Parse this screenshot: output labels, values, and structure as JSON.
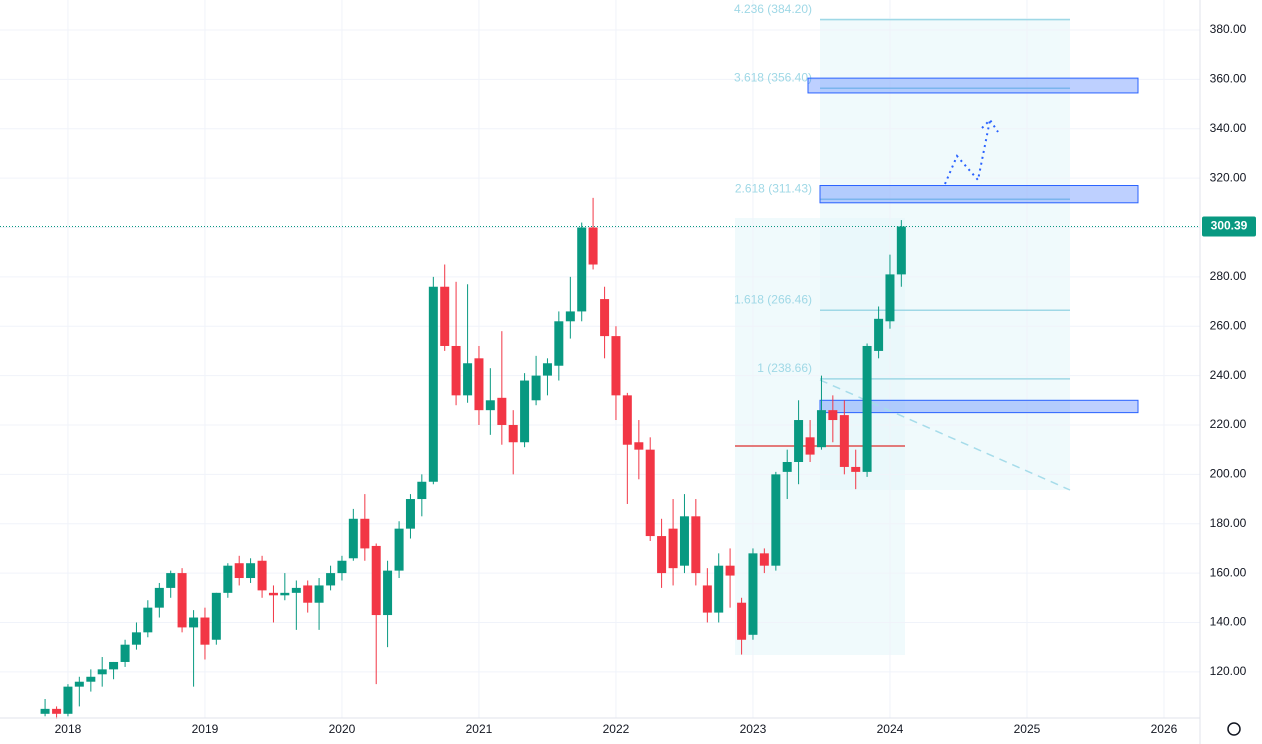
{
  "chart_data": {
    "type": "candlestick",
    "x": [
      2017.833,
      2017.917,
      2018.0,
      2018.083,
      2018.167,
      2018.25,
      2018.333,
      2018.417,
      2018.5,
      2018.583,
      2018.667,
      2018.75,
      2018.833,
      2018.917,
      2019.0,
      2019.083,
      2019.167,
      2019.25,
      2019.333,
      2019.417,
      2019.5,
      2019.583,
      2019.667,
      2019.75,
      2019.833,
      2019.917,
      2020.0,
      2020.083,
      2020.167,
      2020.25,
      2020.333,
      2020.417,
      2020.5,
      2020.583,
      2020.667,
      2020.75,
      2020.833,
      2020.917,
      2021.0,
      2021.083,
      2021.167,
      2021.25,
      2021.333,
      2021.417,
      2021.5,
      2021.583,
      2021.667,
      2021.75,
      2021.833,
      2021.917,
      2022.0,
      2022.083,
      2022.167,
      2022.25,
      2022.333,
      2022.417,
      2022.5,
      2022.583,
      2022.667,
      2022.75,
      2022.833,
      2022.917,
      2023.0,
      2023.083,
      2023.167,
      2023.25,
      2023.333,
      2023.417,
      2023.5,
      2023.583,
      2023.667,
      2023.75,
      2023.833,
      2023.917,
      2024.0,
      2024.083
    ],
    "open": [
      103,
      105,
      103,
      114,
      116,
      119,
      121,
      124,
      131,
      136,
      146,
      154,
      160,
      138,
      142,
      133,
      152,
      164,
      158,
      165,
      152,
      151,
      152,
      155,
      148,
      155,
      160,
      166,
      182,
      171,
      143,
      161,
      178,
      190,
      197,
      276,
      252,
      232,
      247,
      226,
      231,
      220,
      213,
      230,
      240,
      244,
      262,
      266,
      300,
      271,
      256,
      232,
      213,
      210,
      175,
      178,
      163,
      183,
      155,
      144,
      163,
      148,
      135,
      168,
      163,
      201,
      205,
      215,
      211,
      226,
      224,
      203,
      201,
      250,
      262,
      281
    ],
    "high": [
      109,
      106,
      115,
      118,
      121,
      126,
      124,
      133,
      140,
      149,
      156,
      161,
      162,
      145,
      146,
      152,
      164,
      167,
      166,
      167,
      155,
      160,
      157,
      157,
      158,
      163,
      167,
      186,
      192,
      172,
      165,
      181,
      192,
      200,
      280,
      285,
      278,
      277,
      252,
      243,
      258,
      226,
      241,
      248,
      247,
      266,
      280,
      302,
      312,
      276,
      260,
      233,
      222,
      215,
      182,
      190,
      192,
      190,
      162,
      168,
      170,
      150,
      170,
      170,
      201,
      210,
      230,
      222,
      240,
      232,
      230,
      210,
      253,
      268,
      289,
      303
    ],
    "low": [
      102,
      101,
      102,
      106,
      112,
      114,
      117,
      122,
      129,
      134,
      142,
      150,
      136,
      114,
      125,
      131,
      150,
      155,
      156,
      150,
      140,
      149,
      137,
      144,
      137,
      153,
      157,
      165,
      165,
      115,
      130,
      158,
      174,
      183,
      196,
      250,
      228,
      229,
      220,
      216,
      212,
      200,
      211,
      228,
      232,
      238,
      255,
      262,
      283,
      247,
      222,
      188,
      198,
      173,
      154,
      155,
      160,
      155,
      140,
      140,
      146,
      127,
      133,
      160,
      161,
      190,
      196,
      205,
      210,
      213,
      200,
      194,
      199,
      247,
      259,
      276
    ],
    "close": [
      105,
      103,
      114,
      116,
      118,
      121,
      124,
      131,
      136,
      146,
      154,
      160,
      138,
      142,
      131,
      152,
      163,
      158,
      164,
      153,
      151,
      152,
      154,
      148,
      155,
      160,
      165,
      182,
      170,
      143,
      161,
      178,
      190,
      197,
      276,
      252,
      232,
      245,
      226,
      230,
      220,
      213,
      238,
      240,
      245,
      262,
      266,
      300,
      285,
      256,
      232,
      212,
      210,
      175,
      160,
      162,
      183,
      160,
      144,
      163,
      159,
      133,
      168,
      163,
      200,
      205,
      222,
      208,
      226,
      222,
      203,
      201,
      252,
      263,
      281,
      300.39
    ],
    "up_color": "#089981",
    "down_color": "#f23645",
    "xlim": [
      2017.504,
      2026.263
    ],
    "xticks": [
      2018,
      2019,
      2020,
      2021,
      2022,
      2023,
      2024,
      2025,
      2026
    ],
    "ylim": [
      101.3,
      392.15
    ],
    "yticks": [
      {
        "value": 120,
        "label": "120.00"
      },
      {
        "value": 140,
        "label": "140.00"
      },
      {
        "value": 160,
        "label": "160.00"
      },
      {
        "value": 180,
        "label": "180.00"
      },
      {
        "value": 200,
        "label": "200.00"
      },
      {
        "value": 220,
        "label": "220.00"
      },
      {
        "value": 240,
        "label": "240.00"
      },
      {
        "value": 260,
        "label": "260.00"
      },
      {
        "value": 280,
        "label": "280.00"
      },
      {
        "value": 300,
        "label": "300.00"
      },
      {
        "value": 320,
        "label": "320.00"
      },
      {
        "value": 340,
        "label": "340.00"
      },
      {
        "value": 360,
        "label": "360.00"
      },
      {
        "value": 380,
        "label": "380.00"
      }
    ],
    "grid": true,
    "last_price": 300.39,
    "fib_levels": [
      {
        "value": 384.2,
        "label": "4.236 (384.20)"
      },
      {
        "value": 356.4,
        "label": "3.618 (356.40)"
      },
      {
        "value": 311.43,
        "label": "2.618 (311.43)"
      },
      {
        "value": 266.46,
        "label": "1.618 (266.46)"
      },
      {
        "value": 238.66,
        "label": "1 (238.66)"
      }
    ],
    "zones": [
      [
        354.5,
        360.5
      ],
      [
        310,
        317
      ],
      [
        225,
        230
      ]
    ]
  }
}
